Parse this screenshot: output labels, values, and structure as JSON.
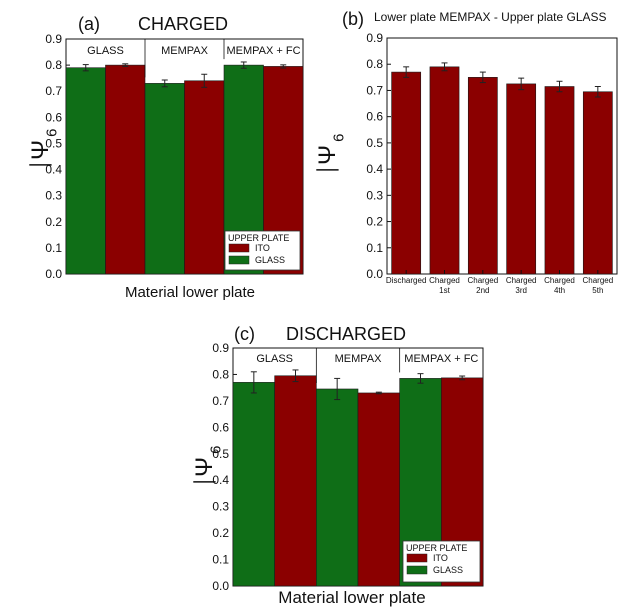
{
  "panels": {
    "a": {
      "label": "(a)",
      "title": "CHARGED",
      "xlabel": "Material lower plate"
    },
    "b": {
      "label": "(b)",
      "title": "Lower plate MEMPAX - Upper plate GLASS"
    },
    "c": {
      "label": "(c)",
      "title": "DISCHARGED",
      "xlabel": "Material lower plate"
    }
  },
  "ylabel_symbol": "Ψ",
  "ylabel_subscript": "6",
  "legend": {
    "title": "UPPER PLATE",
    "items": [
      "ITO",
      "GLASS"
    ]
  },
  "colors": {
    "ITO": "#8b0000",
    "GLASS": "#0f6e17",
    "axis": "#111111"
  },
  "yticks": [
    "0.0",
    "0.1",
    "0.2",
    "0.3",
    "0.4",
    "0.5",
    "0.6",
    "0.7",
    "0.8",
    "0.9"
  ],
  "chart_data": [
    {
      "type": "bar",
      "panel": "a",
      "title": "CHARGED",
      "xlabel": "Material lower plate",
      "ylabel": "Ψ̄6",
      "ylim": [
        0,
        0.9
      ],
      "groups": [
        "GLASS",
        "MEMPAX",
        "MEMPAX + FC"
      ],
      "series": [
        {
          "name": "GLASS",
          "values": [
            0.79,
            0.73,
            0.8
          ],
          "errors": [
            0.012,
            0.013,
            0.012
          ]
        },
        {
          "name": "ITO",
          "values": [
            0.8,
            0.74,
            0.795
          ],
          "errors": [
            0.005,
            0.025,
            0.006
          ]
        }
      ],
      "legend_position": "bottom-right"
    },
    {
      "type": "bar",
      "panel": "b",
      "title": "Lower plate MEMPAX - Upper plate GLASS",
      "ylabel": "Ψ̄6",
      "ylim": [
        0,
        0.9
      ],
      "categories": [
        [
          "Discharged"
        ],
        [
          "Charged",
          "1st"
        ],
        [
          "Charged",
          "2nd"
        ],
        [
          "Charged",
          "3rd"
        ],
        [
          "Charged",
          "4th"
        ],
        [
          "Charged",
          "5th"
        ]
      ],
      "values": [
        0.77,
        0.79,
        0.75,
        0.725,
        0.715,
        0.695
      ],
      "errors": [
        0.02,
        0.015,
        0.02,
        0.022,
        0.02,
        0.02
      ]
    },
    {
      "type": "bar",
      "panel": "c",
      "title": "DISCHARGED",
      "xlabel": "Material lower plate",
      "ylabel": "Ψ̄6",
      "ylim": [
        0,
        0.9
      ],
      "groups": [
        "GLASS",
        "MEMPAX",
        "MEMPAX + FC"
      ],
      "series": [
        {
          "name": "GLASS",
          "values": [
            0.77,
            0.745,
            0.785
          ],
          "errors": [
            0.04,
            0.04,
            0.018
          ]
        },
        {
          "name": "ITO",
          "values": [
            0.795,
            0.73,
            0.787
          ],
          "errors": [
            0.022,
            0.003,
            0.007
          ]
        }
      ],
      "legend_position": "bottom-right"
    }
  ]
}
